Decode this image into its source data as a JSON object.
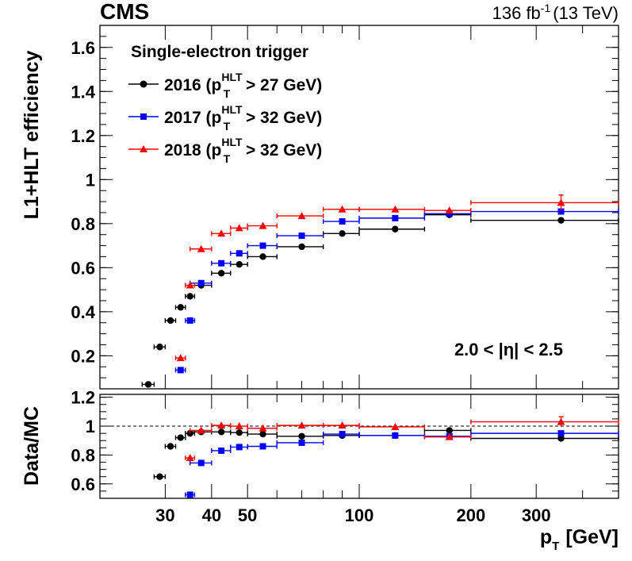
{
  "header": {
    "experiment": "CMS",
    "lumi_value": "136 fb",
    "lumi_exp": "-1",
    "energy": "(13 TeV)"
  },
  "legend": {
    "title": "Single-electron trigger",
    "entries": [
      {
        "year": "2016 (p",
        "sub": "T",
        "sup": "HLT",
        "cut": " > 27 GeV)"
      },
      {
        "year": "2017 (p",
        "sub": "T",
        "sup": "HLT",
        "cut": " > 32 GeV)"
      },
      {
        "year": "2018 (p",
        "sub": "T",
        "sup": "HLT",
        "cut": " > 32 GeV)"
      }
    ]
  },
  "region_label": "2.0 < |η| < 2.5",
  "chart_data": {
    "type": "scatter",
    "xscale": "log",
    "xlim": [
      20,
      500
    ],
    "xlabel": "p",
    "xlabel_sub": "T",
    "xlabel_unit": "[GeV]",
    "xticks": [
      {
        "value": 30,
        "label": "30"
      },
      {
        "value": 40,
        "label": "40"
      },
      {
        "value": 50,
        "label": "50"
      },
      {
        "value": 100,
        "label": "100"
      },
      {
        "value": 200,
        "label": "200"
      },
      {
        "value": 300,
        "label": "300"
      }
    ],
    "top_panel": {
      "ylabel": "L1+HLT efficiency",
      "ylim": [
        0.05,
        1.7
      ],
      "yticks": [
        "0.2",
        "0.4",
        "0.6",
        "0.8",
        "1",
        "1.2",
        "1.4",
        "1.6"
      ],
      "series": [
        {
          "name": "2016",
          "color": "#000000",
          "marker": "circle",
          "points": [
            {
              "x": 27,
              "xlo": 26,
              "xhi": 28,
              "y": 0.07
            },
            {
              "x": 29,
              "xlo": 28,
              "xhi": 30,
              "y": 0.24
            },
            {
              "x": 31,
              "xlo": 30,
              "xhi": 32,
              "y": 0.36
            },
            {
              "x": 33,
              "xlo": 32,
              "xhi": 34,
              "y": 0.42
            },
            {
              "x": 35,
              "xlo": 34,
              "xhi": 36,
              "y": 0.47
            },
            {
              "x": 37.5,
              "xlo": 35,
              "xhi": 40,
              "y": 0.52
            },
            {
              "x": 42.5,
              "xlo": 40,
              "xhi": 45,
              "y": 0.575
            },
            {
              "x": 47.5,
              "xlo": 45,
              "xhi": 50,
              "y": 0.615
            },
            {
              "x": 55,
              "xlo": 50,
              "xhi": 60,
              "y": 0.65
            },
            {
              "x": 70,
              "xlo": 60,
              "xhi": 80,
              "y": 0.695
            },
            {
              "x": 90,
              "xlo": 80,
              "xhi": 100,
              "y": 0.755
            },
            {
              "x": 125,
              "xlo": 100,
              "xhi": 150,
              "y": 0.775
            },
            {
              "x": 175,
              "xlo": 150,
              "xhi": 200,
              "y": 0.84
            },
            {
              "x": 350,
              "xlo": 200,
              "xhi": 500,
              "y": 0.815
            }
          ]
        },
        {
          "name": "2017",
          "color": "#0000ff",
          "marker": "square",
          "points": [
            {
              "x": 33,
              "xlo": 32,
              "xhi": 34,
              "y": 0.135
            },
            {
              "x": 35,
              "xlo": 34,
              "xhi": 36,
              "y": 0.36
            },
            {
              "x": 37.5,
              "xlo": 35,
              "xhi": 40,
              "y": 0.53
            },
            {
              "x": 42.5,
              "xlo": 40,
              "xhi": 45,
              "y": 0.62
            },
            {
              "x": 47.5,
              "xlo": 45,
              "xhi": 50,
              "y": 0.665
            },
            {
              "x": 55,
              "xlo": 50,
              "xhi": 60,
              "y": 0.7
            },
            {
              "x": 70,
              "xlo": 60,
              "xhi": 80,
              "y": 0.745
            },
            {
              "x": 90,
              "xlo": 80,
              "xhi": 100,
              "y": 0.81
            },
            {
              "x": 125,
              "xlo": 100,
              "xhi": 150,
              "y": 0.825
            },
            {
              "x": 175,
              "xlo": 150,
              "xhi": 200,
              "y": 0.845
            },
            {
              "x": 350,
              "xlo": 200,
              "xhi": 500,
              "y": 0.855
            }
          ]
        },
        {
          "name": "2018",
          "color": "#ff0000",
          "marker": "triangle",
          "points": [
            {
              "x": 33,
              "xlo": 32,
              "xhi": 34,
              "y": 0.19
            },
            {
              "x": 35,
              "xlo": 34,
              "xhi": 36,
              "y": 0.52
            },
            {
              "x": 37.5,
              "xlo": 35,
              "xhi": 40,
              "y": 0.685
            },
            {
              "x": 42.5,
              "xlo": 40,
              "xhi": 45,
              "y": 0.755
            },
            {
              "x": 47.5,
              "xlo": 45,
              "xhi": 50,
              "y": 0.78
            },
            {
              "x": 55,
              "xlo": 50,
              "xhi": 60,
              "y": 0.79
            },
            {
              "x": 70,
              "xlo": 60,
              "xhi": 80,
              "y": 0.835
            },
            {
              "x": 90,
              "xlo": 80,
              "xhi": 100,
              "y": 0.865
            },
            {
              "x": 125,
              "xlo": 100,
              "xhi": 150,
              "y": 0.865
            },
            {
              "x": 175,
              "xlo": 150,
              "xhi": 200,
              "y": 0.86
            },
            {
              "x": 350,
              "xlo": 200,
              "xhi": 500,
              "y": 0.895,
              "yerr": 0.035
            }
          ]
        }
      ]
    },
    "ratio_panel": {
      "ylabel": "Data/MC",
      "ylim": [
        0.5,
        1.22
      ],
      "yticks": [
        "0.6",
        "0.8",
        "1",
        "1.2"
      ],
      "reference_line": 1.0,
      "series": [
        {
          "name": "2016",
          "color": "#000000",
          "marker": "circle",
          "points": [
            {
              "x": 29,
              "xlo": 28,
              "xhi": 30,
              "y": 0.65
            },
            {
              "x": 31,
              "xlo": 30,
              "xhi": 32,
              "y": 0.86
            },
            {
              "x": 33,
              "xlo": 32,
              "xhi": 34,
              "y": 0.92
            },
            {
              "x": 35,
              "xlo": 34,
              "xhi": 36,
              "y": 0.95
            },
            {
              "x": 37.5,
              "xlo": 35,
              "xhi": 40,
              "y": 0.96
            },
            {
              "x": 42.5,
              "xlo": 40,
              "xhi": 45,
              "y": 0.96
            },
            {
              "x": 47.5,
              "xlo": 45,
              "xhi": 50,
              "y": 0.955
            },
            {
              "x": 55,
              "xlo": 50,
              "xhi": 60,
              "y": 0.945
            },
            {
              "x": 70,
              "xlo": 60,
              "xhi": 80,
              "y": 0.93
            },
            {
              "x": 90,
              "xlo": 80,
              "xhi": 100,
              "y": 0.935
            },
            {
              "x": 125,
              "xlo": 100,
              "xhi": 150,
              "y": 0.935
            },
            {
              "x": 175,
              "xlo": 150,
              "xhi": 200,
              "y": 0.97
            },
            {
              "x": 350,
              "xlo": 200,
              "xhi": 500,
              "y": 0.915
            }
          ]
        },
        {
          "name": "2017",
          "color": "#0000ff",
          "marker": "square",
          "points": [
            {
              "x": 35,
              "xlo": 34,
              "xhi": 36,
              "y": 0.525
            },
            {
              "x": 37.5,
              "xlo": 35,
              "xhi": 40,
              "y": 0.745
            },
            {
              "x": 42.5,
              "xlo": 40,
              "xhi": 45,
              "y": 0.83
            },
            {
              "x": 47.5,
              "xlo": 45,
              "xhi": 50,
              "y": 0.855
            },
            {
              "x": 55,
              "xlo": 50,
              "xhi": 60,
              "y": 0.86
            },
            {
              "x": 70,
              "xlo": 60,
              "xhi": 80,
              "y": 0.885
            },
            {
              "x": 90,
              "xlo": 80,
              "xhi": 100,
              "y": 0.945
            },
            {
              "x": 125,
              "xlo": 100,
              "xhi": 150,
              "y": 0.935
            },
            {
              "x": 175,
              "xlo": 150,
              "xhi": 200,
              "y": 0.93
            },
            {
              "x": 350,
              "xlo": 200,
              "xhi": 500,
              "y": 0.95
            }
          ]
        },
        {
          "name": "2018",
          "color": "#ff0000",
          "marker": "triangle",
          "points": [
            {
              "x": 35,
              "xlo": 34,
              "xhi": 36,
              "y": 0.78
            },
            {
              "x": 37.5,
              "xlo": 35,
              "xhi": 40,
              "y": 0.97
            },
            {
              "x": 42.5,
              "xlo": 40,
              "xhi": 45,
              "y": 1.005
            },
            {
              "x": 47.5,
              "xlo": 45,
              "xhi": 50,
              "y": 1.0
            },
            {
              "x": 55,
              "xlo": 50,
              "xhi": 60,
              "y": 0.985
            },
            {
              "x": 70,
              "xlo": 60,
              "xhi": 80,
              "y": 1.005
            },
            {
              "x": 90,
              "xlo": 80,
              "xhi": 100,
              "y": 1.005
            },
            {
              "x": 125,
              "xlo": 100,
              "xhi": 150,
              "y": 0.995
            },
            {
              "x": 175,
              "xlo": 150,
              "xhi": 200,
              "y": 0.925
            },
            {
              "x": 350,
              "xlo": 200,
              "xhi": 500,
              "y": 1.03,
              "yerr": 0.035
            }
          ]
        }
      ]
    }
  }
}
